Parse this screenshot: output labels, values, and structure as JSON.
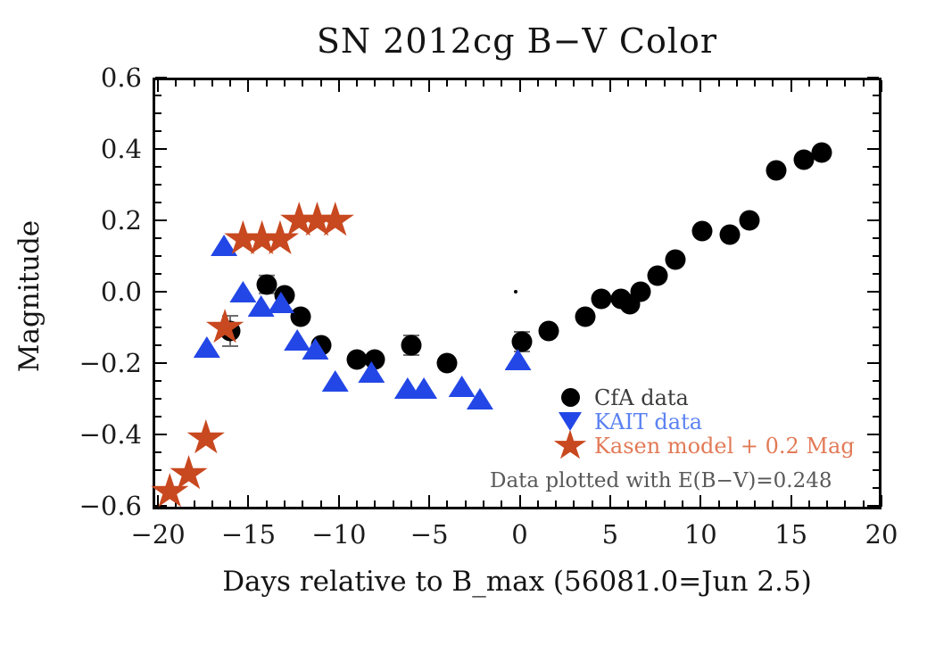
{
  "chart_data": {
    "type": "scatter",
    "title": "SN 2012cg B−V Color",
    "xlabel": "Days relative to B_max (56081.0=Jun 2.5)",
    "ylabel": "Magnitude",
    "xlim": [
      -20.3,
      20.0
    ],
    "ylim": [
      -0.61,
      0.6
    ],
    "grid": false,
    "background": "#ffffff",
    "frame_color": "#000000",
    "x_ticks": {
      "major": [
        -20,
        -15,
        -10,
        -5,
        0,
        5,
        10,
        15,
        20
      ],
      "labels": [
        "−20",
        "−15",
        "−10",
        "−5",
        "0",
        "5",
        "10",
        "15",
        "20"
      ],
      "minor_step": 1
    },
    "y_ticks": {
      "major": [
        0.6,
        0.4,
        0.2,
        0.0,
        -0.2,
        -0.4,
        -0.6
      ],
      "labels": [
        "0.6",
        "0.4",
        "0.2",
        "0.0",
        "−0.2",
        "−0.4",
        "−0.6"
      ],
      "minor_step": 0.05
    },
    "annotation": "Data plotted with E(B−V)=0.248",
    "annotation_color": "#585858",
    "error_bar_color": "#6e6e6e",
    "legend_position": "lower-right-inside",
    "series": [
      {
        "name": "CfA data",
        "marker": "circle",
        "legend_marker": "circle",
        "color": "#000000",
        "label_color": "#3c3c3c",
        "points": [
          {
            "x": -16.0,
            "y": -0.11,
            "err": 0.045
          },
          {
            "x": -14.0,
            "y": 0.02,
            "err": 0.028
          },
          {
            "x": -13.0,
            "y": -0.01
          },
          {
            "x": -12.1,
            "y": -0.07
          },
          {
            "x": -11.0,
            "y": -0.15
          },
          {
            "x": -9.0,
            "y": -0.19
          },
          {
            "x": -8.0,
            "y": -0.19
          },
          {
            "x": -6.0,
            "y": -0.15,
            "err": 0.03
          },
          {
            "x": -4.0,
            "y": -0.2
          },
          {
            "x": 0.1,
            "y": -0.14,
            "err": 0.03
          },
          {
            "x": 1.6,
            "y": -0.11
          },
          {
            "x": 3.6,
            "y": -0.07
          },
          {
            "x": 4.5,
            "y": -0.02
          },
          {
            "x": 5.6,
            "y": -0.02
          },
          {
            "x": 6.1,
            "y": -0.035
          },
          {
            "x": 6.7,
            "y": 0.0
          },
          {
            "x": 7.6,
            "y": 0.045
          },
          {
            "x": 8.6,
            "y": 0.09
          },
          {
            "x": 10.1,
            "y": 0.17
          },
          {
            "x": 11.6,
            "y": 0.16
          },
          {
            "x": 12.7,
            "y": 0.2
          },
          {
            "x": 14.2,
            "y": 0.34
          },
          {
            "x": 15.7,
            "y": 0.37
          },
          {
            "x": 16.7,
            "y": 0.39
          }
        ]
      },
      {
        "name": "KAIT data",
        "marker": "triangle-up",
        "legend_marker": "triangle-down",
        "color": "#2347e6",
        "label_color": "#5b82f2",
        "points": [
          {
            "x": -17.3,
            "y": -0.155
          },
          {
            "x": -16.35,
            "y": 0.13
          },
          {
            "x": -15.3,
            "y": 0.0
          },
          {
            "x": -14.3,
            "y": -0.04
          },
          {
            "x": -13.2,
            "y": -0.03
          },
          {
            "x": -12.3,
            "y": -0.135
          },
          {
            "x": -11.3,
            "y": -0.16
          },
          {
            "x": -10.2,
            "y": -0.25
          },
          {
            "x": -8.2,
            "y": -0.225
          },
          {
            "x": -6.2,
            "y": -0.27
          },
          {
            "x": -5.3,
            "y": -0.27
          },
          {
            "x": -3.2,
            "y": -0.265
          },
          {
            "x": -2.2,
            "y": -0.3
          },
          {
            "x": -0.1,
            "y": -0.19
          }
        ]
      },
      {
        "name": "Kasen model + 0.2 Mag",
        "marker": "star",
        "legend_marker": "star",
        "color": "#c8481f",
        "label_color": "#e27a57",
        "points": [
          {
            "x": -19.35,
            "y": -0.56
          },
          {
            "x": -18.3,
            "y": -0.51
          },
          {
            "x": -17.35,
            "y": -0.41
          },
          {
            "x": -16.3,
            "y": -0.1
          },
          {
            "x": -15.3,
            "y": 0.148
          },
          {
            "x": -14.25,
            "y": 0.148
          },
          {
            "x": -13.25,
            "y": 0.148
          },
          {
            "x": -12.2,
            "y": 0.2
          },
          {
            "x": -11.2,
            "y": 0.2
          },
          {
            "x": -10.2,
            "y": 0.2
          }
        ]
      }
    ],
    "stray_dot": {
      "x": -0.2,
      "y": 0.0
    }
  }
}
